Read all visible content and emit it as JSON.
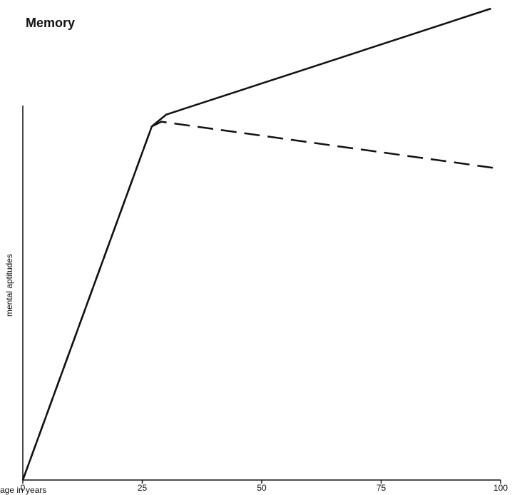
{
  "chart_data": {
    "type": "line",
    "title": "Memory",
    "x_label": "age in years",
    "y_label": "mental aptitudes",
    "xlim": [
      0,
      100
    ],
    "xticks": [
      0,
      25,
      50,
      75,
      100
    ],
    "ylim": [
      0,
      100
    ],
    "series": [
      {
        "color": "#111111",
        "dashed": false,
        "x": [
          0,
          27,
          30,
          98
        ],
        "values": [
          0,
          75,
          77.5,
          100
        ]
      },
      {
        "color": "#111111",
        "dashed": true,
        "x": [
          0,
          27,
          29,
          100
        ],
        "values": [
          0,
          75,
          76,
          66
        ]
      }
    ]
  }
}
